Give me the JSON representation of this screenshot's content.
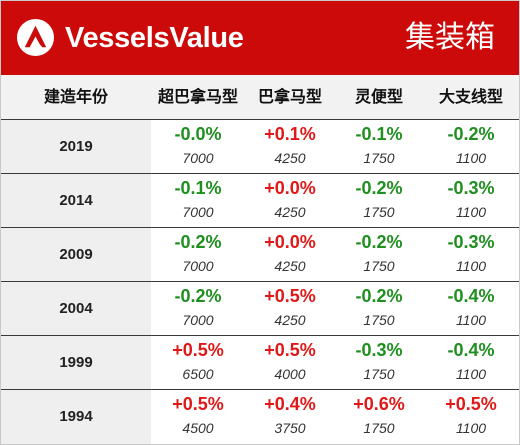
{
  "header": {
    "brand": "VesselsValue",
    "category": "集装箱",
    "logo_icon": "vesselsvalue-logo-icon",
    "background_color": "#cc0a0a"
  },
  "table": {
    "columns": [
      "建造年份",
      "超巴拿马型",
      "巴拿马型",
      "灵便型",
      "大支线型"
    ],
    "rows": [
      {
        "year": "2019",
        "cells": [
          {
            "pct": "-0.0%",
            "dir": "neg",
            "value": "7000"
          },
          {
            "pct": "+0.1%",
            "dir": "pos",
            "value": "4250"
          },
          {
            "pct": "-0.1%",
            "dir": "neg",
            "value": "1750"
          },
          {
            "pct": "-0.2%",
            "dir": "neg",
            "value": "1100"
          }
        ]
      },
      {
        "year": "2014",
        "cells": [
          {
            "pct": "-0.1%",
            "dir": "neg",
            "value": "7000"
          },
          {
            "pct": "+0.0%",
            "dir": "pos",
            "value": "4250"
          },
          {
            "pct": "-0.2%",
            "dir": "neg",
            "value": "1750"
          },
          {
            "pct": "-0.3%",
            "dir": "neg",
            "value": "1100"
          }
        ]
      },
      {
        "year": "2009",
        "cells": [
          {
            "pct": "-0.2%",
            "dir": "neg",
            "value": "7000"
          },
          {
            "pct": "+0.0%",
            "dir": "pos",
            "value": "4250"
          },
          {
            "pct": "-0.2%",
            "dir": "neg",
            "value": "1750"
          },
          {
            "pct": "-0.3%",
            "dir": "neg",
            "value": "1100"
          }
        ]
      },
      {
        "year": "2004",
        "cells": [
          {
            "pct": "-0.2%",
            "dir": "neg",
            "value": "7000"
          },
          {
            "pct": "+0.5%",
            "dir": "pos",
            "value": "4250"
          },
          {
            "pct": "-0.2%",
            "dir": "neg",
            "value": "1750"
          },
          {
            "pct": "-0.4%",
            "dir": "neg",
            "value": "1100"
          }
        ]
      },
      {
        "year": "1999",
        "cells": [
          {
            "pct": "+0.5%",
            "dir": "pos",
            "value": "6500"
          },
          {
            "pct": "+0.5%",
            "dir": "pos",
            "value": "4000"
          },
          {
            "pct": "-0.3%",
            "dir": "neg",
            "value": "1750"
          },
          {
            "pct": "-0.4%",
            "dir": "neg",
            "value": "1100"
          }
        ]
      },
      {
        "year": "1994",
        "cells": [
          {
            "pct": "+0.5%",
            "dir": "pos",
            "value": "4500"
          },
          {
            "pct": "+0.4%",
            "dir": "pos",
            "value": "3750"
          },
          {
            "pct": "+0.6%",
            "dir": "pos",
            "value": "1750"
          },
          {
            "pct": "+0.5%",
            "dir": "pos",
            "value": "1100"
          }
        ]
      }
    ],
    "colors": {
      "positive": "#e01818",
      "negative": "#1f8f1f"
    }
  }
}
